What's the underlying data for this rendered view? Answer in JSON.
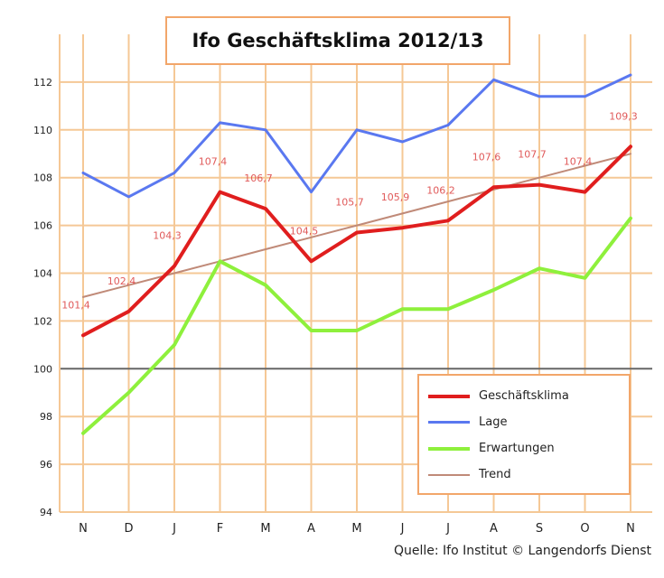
{
  "title": "Ifo Geschäftsklima 2012/13",
  "source": "Quelle: Ifo Institut © Langendorfs Dienst",
  "colors": {
    "background": "#ffffff",
    "grid": "#f5c896",
    "axis_line": "#666666",
    "geschaeftsklima": "#e01e1e",
    "lage": "#5a78f0",
    "erwartungen": "#8ef03c",
    "trend": "#c08a78",
    "data_label": "#e05a5a"
  },
  "legend": [
    {
      "label": "Geschäftsklima",
      "series": "geschaeftsklima"
    },
    {
      "label": "Lage",
      "series": "lage"
    },
    {
      "label": "Erwartungen",
      "series": "erwartungen"
    },
    {
      "label": "Trend",
      "series": "trend"
    }
  ],
  "chart_data": {
    "type": "line",
    "title": "Ifo Geschäftsklima 2012/13",
    "categories": [
      "N",
      "D",
      "J",
      "F",
      "M",
      "A",
      "M",
      "J",
      "J",
      "A",
      "S",
      "O",
      "N"
    ],
    "ylim": [
      94,
      114
    ],
    "yticks": [
      94,
      96,
      98,
      100,
      102,
      104,
      106,
      108,
      110,
      112
    ],
    "grid": true,
    "legend_position": "bottom-right",
    "series": [
      {
        "name": "Geschäftsklima",
        "key": "geschaeftsklima",
        "values": [
          101.4,
          102.4,
          104.3,
          107.4,
          106.7,
          104.5,
          105.7,
          105.9,
          106.2,
          107.6,
          107.7,
          107.4,
          109.3
        ]
      },
      {
        "name": "Lage",
        "key": "lage",
        "values": [
          108.2,
          107.2,
          108.2,
          110.3,
          110.0,
          107.4,
          110.0,
          109.5,
          110.2,
          112.1,
          111.4,
          111.4,
          112.3
        ]
      },
      {
        "name": "Erwartungen",
        "key": "erwartungen",
        "values": [
          97.3,
          99.0,
          101.0,
          104.5,
          103.5,
          101.6,
          101.6,
          102.5,
          102.5,
          103.3,
          104.2,
          103.8,
          106.3
        ]
      },
      {
        "name": "Trend",
        "key": "trend",
        "values": [
          103.0,
          103.5,
          104.0,
          104.5,
          105.0,
          105.5,
          106.0,
          106.5,
          107.0,
          107.5,
          108.0,
          108.5,
          109.0
        ]
      }
    ],
    "data_labels": [
      {
        "index": 0,
        "text": "101,4"
      },
      {
        "index": 1,
        "text": "102,4"
      },
      {
        "index": 2,
        "text": "104,3"
      },
      {
        "index": 3,
        "text": "107,4"
      },
      {
        "index": 4,
        "text": "106,7"
      },
      {
        "index": 5,
        "text": "104,5"
      },
      {
        "index": 6,
        "text": "105,7"
      },
      {
        "index": 7,
        "text": "105,9"
      },
      {
        "index": 8,
        "text": "106,2"
      },
      {
        "index": 9,
        "text": "107,6"
      },
      {
        "index": 10,
        "text": "107,7"
      },
      {
        "index": 11,
        "text": "107,4"
      },
      {
        "index": 12,
        "text": "109,3"
      }
    ]
  }
}
